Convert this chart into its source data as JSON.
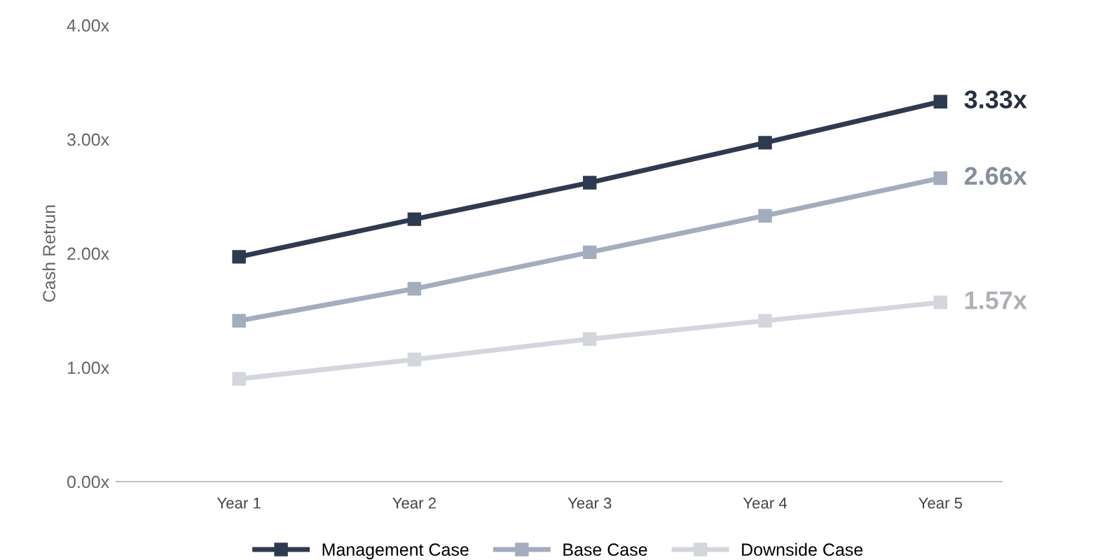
{
  "chart_data": {
    "type": "line",
    "ylabel": "Cash Retrun",
    "categories": [
      "Year 1",
      "Year 2",
      "Year 3",
      "Year 4",
      "Year 5"
    ],
    "series": [
      {
        "name": "Management Case",
        "color": "#2e3a4f",
        "values": [
          1.97,
          2.3,
          2.62,
          2.97,
          3.33
        ],
        "value_labels": [
          null,
          null,
          null,
          null,
          "3.33x"
        ]
      },
      {
        "name": "Base Case",
        "color": "#a3adbd",
        "values": [
          1.41,
          1.69,
          2.01,
          2.33,
          2.66
        ],
        "value_labels": [
          null,
          null,
          null,
          null,
          "2.66x"
        ]
      },
      {
        "name": "Downside Case",
        "color": "#d3d7dd",
        "values": [
          0.9,
          1.07,
          1.25,
          1.41,
          1.57
        ],
        "value_labels": [
          null,
          null,
          null,
          null,
          "1.57x"
        ]
      }
    ],
    "ylim": [
      0,
      4
    ],
    "yticks": [
      {
        "value": 0,
        "label": "0.00x"
      },
      {
        "value": 1,
        "label": "1.00x"
      },
      {
        "value": 2,
        "label": "2.00x"
      },
      {
        "value": 3,
        "label": "3.00x"
      },
      {
        "value": 4,
        "label": "4.00x"
      }
    ],
    "grid": false,
    "legend": "bottom",
    "marker": "square",
    "line_style": "solid"
  }
}
